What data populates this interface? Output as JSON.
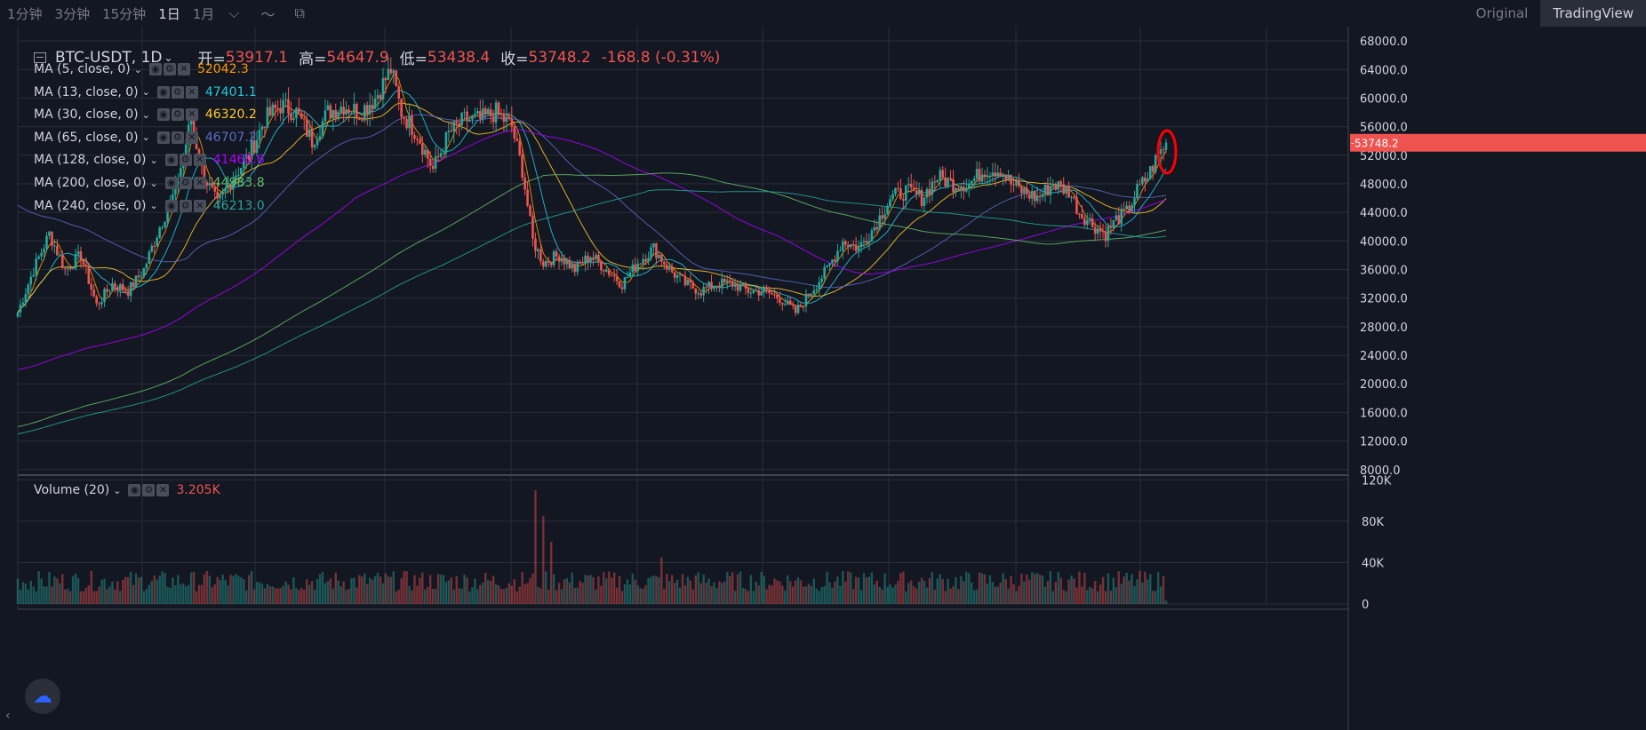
{
  "toolbar": {
    "timeframes": [
      "1分钟",
      "3分钟",
      "15分钟",
      "1日",
      "1月"
    ],
    "active": "1日",
    "dropdown_icon": "chevron-down-icon",
    "line_icon": "line-type-icon",
    "screenshot_icon": "screenshot-icon",
    "view_options": [
      "Original",
      "TradingView"
    ],
    "active_view": "TradingView"
  },
  "main_legend": {
    "symbol": "BTC-USDT, 1D",
    "open_label": "开=",
    "open": "53917.1",
    "high_label": "高=",
    "high": "54647.9",
    "low_label": "低=",
    "low": "53438.4",
    "close_label": "收=",
    "close": "53748.2",
    "change": "-168.8 (-0.31%)"
  },
  "indicators": [
    {
      "label": "MA (5, close, 0)",
      "value": "52042.3",
      "color": "#ff9800"
    },
    {
      "label": "MA (13, close, 0)",
      "value": "47401.1",
      "color": "#26c6da"
    },
    {
      "label": "MA (30, close, 0)",
      "value": "46320.2",
      "color": "#ffca28"
    },
    {
      "label": "MA (65, close, 0)",
      "value": "46707.2",
      "color": "#5c6bc0"
    },
    {
      "label": "MA (128, close, 0)",
      "value": "41460.6",
      "color": "#aa00ff"
    },
    {
      "label": "MA (200, close, 0)",
      "value": "44983.8",
      "color": "#66bb6a"
    },
    {
      "label": "MA (240, close, 0)",
      "value": "46213.0",
      "color": "#26a69a"
    }
  ],
  "volume_legend": {
    "label": "Volume (20)",
    "value": "3.205K"
  },
  "price_badge": "53748.2",
  "colors": {
    "up": "#26a69a",
    "down": "#ef5350",
    "grid": "#2a2e39",
    "bg": "#131722",
    "highlight": "#ff0000"
  },
  "chart_data": {
    "type": "candlestick",
    "symbol": "BTC-USDT",
    "interval": "1D",
    "price_axis": {
      "ticks": [
        8000,
        12000,
        16000,
        20000,
        24000,
        28000,
        32000,
        36000,
        40000,
        44000,
        48000,
        52000,
        56000,
        60000,
        64000,
        68000
      ],
      "labels": [
        "8000.0",
        "12000.0",
        "16000.0",
        "20000.0",
        "24000.0",
        "28000.0",
        "32000.0",
        "36000.0",
        "40000.0",
        "44000.0",
        "48000.0",
        "52000.0",
        "56000.0",
        "60000.0",
        "64000.0",
        "68000.0"
      ],
      "range": [
        7600,
        70000
      ]
    },
    "volume_axis": {
      "ticks": [
        0,
        40000,
        80000,
        120000
      ],
      "labels": [
        "0",
        "40K",
        "80K",
        "120K"
      ],
      "range": [
        0,
        122000
      ]
    },
    "price_path": [
      [
        0,
        30000
      ],
      [
        6,
        36000
      ],
      [
        12,
        41000
      ],
      [
        18,
        36000
      ],
      [
        24,
        38000
      ],
      [
        30,
        31000
      ],
      [
        36,
        34000
      ],
      [
        42,
        33000
      ],
      [
        48,
        36000
      ],
      [
        54,
        42000
      ],
      [
        60,
        47000
      ],
      [
        66,
        57000
      ],
      [
        70,
        50000
      ],
      [
        76,
        45000
      ],
      [
        82,
        49000
      ],
      [
        88,
        52000
      ],
      [
        94,
        57000
      ],
      [
        100,
        59000
      ],
      [
        106,
        58000
      ],
      [
        112,
        54000
      ],
      [
        118,
        58000
      ],
      [
        124,
        59000
      ],
      [
        130,
        58000
      ],
      [
        136,
        60000
      ],
      [
        142,
        64000
      ],
      [
        146,
        58000
      ],
      [
        152,
        55000
      ],
      [
        158,
        50000
      ],
      [
        164,
        55000
      ],
      [
        170,
        57000
      ],
      [
        176,
        57000
      ],
      [
        182,
        58000
      ],
      [
        188,
        56000
      ],
      [
        192,
        50000
      ],
      [
        196,
        40000
      ],
      [
        200,
        37000
      ],
      [
        206,
        38000
      ],
      [
        212,
        36000
      ],
      [
        218,
        38000
      ],
      [
        224,
        36000
      ],
      [
        230,
        34000
      ],
      [
        236,
        37000
      ],
      [
        242,
        39000
      ],
      [
        248,
        36000
      ],
      [
        254,
        34000
      ],
      [
        260,
        33000
      ],
      [
        266,
        34000
      ],
      [
        272,
        34000
      ],
      [
        278,
        33000
      ],
      [
        284,
        33000
      ],
      [
        290,
        32000
      ],
      [
        296,
        30000
      ],
      [
        302,
        33000
      ],
      [
        308,
        36000
      ],
      [
        314,
        40000
      ],
      [
        320,
        39000
      ],
      [
        326,
        42000
      ],
      [
        332,
        46000
      ],
      [
        338,
        47000
      ],
      [
        344,
        46000
      ],
      [
        350,
        49000
      ],
      [
        356,
        48000
      ],
      [
        362,
        48000
      ],
      [
        368,
        50000
      ],
      [
        374,
        50000
      ],
      [
        378,
        48000
      ],
      [
        382,
        47000
      ],
      [
        388,
        46000
      ],
      [
        394,
        48000
      ],
      [
        400,
        47000
      ],
      [
        404,
        44000
      ],
      [
        410,
        42000
      ],
      [
        414,
        41000
      ],
      [
        418,
        43000
      ],
      [
        422,
        44000
      ],
      [
        426,
        47000
      ],
      [
        430,
        49000
      ],
      [
        434,
        52000
      ],
      [
        437,
        53748
      ]
    ],
    "volume_spikes": [
      [
        197,
        110000
      ],
      [
        200,
        85000
      ],
      [
        203,
        60000
      ],
      [
        245,
        45000
      ]
    ],
    "ma_periods": [
      5,
      13,
      30,
      65,
      128,
      200,
      240
    ],
    "annotation": "red ellipse around latest candles"
  }
}
